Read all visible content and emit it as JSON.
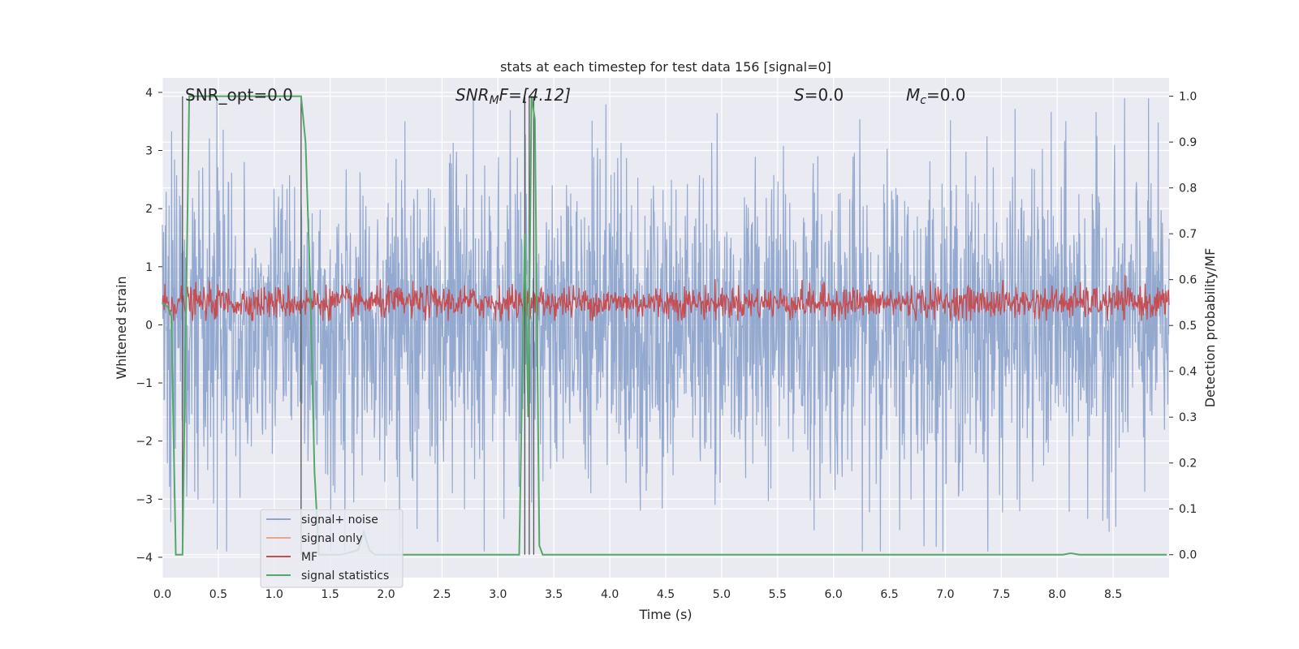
{
  "chart_data": {
    "type": "line",
    "title": "stats at each timestep for test data 156 [signal=0]",
    "xlabel": "Time (s)",
    "ylabel_left": "Whitened strain",
    "ylabel_right": "Detection probability/MF",
    "xlim": [
      0.0,
      9.0
    ],
    "ylim_left": [
      -4.35,
      4.25
    ],
    "ylim_right": [
      -0.05,
      1.04
    ],
    "x_ticks": [
      "0.0",
      "0.5",
      "1.0",
      "1.5",
      "2.0",
      "2.5",
      "3.0",
      "3.5",
      "4.0",
      "4.5",
      "5.0",
      "5.5",
      "6.0",
      "6.5",
      "7.0",
      "7.5",
      "8.0",
      "8.5"
    ],
    "y_ticks_left": [
      "4",
      "3",
      "2",
      "1",
      "0",
      "−1",
      "−2",
      "−3",
      "−4"
    ],
    "y_ticks_right": [
      "1.0",
      "0.9",
      "0.8",
      "0.7",
      "0.6",
      "0.5",
      "0.4",
      "0.3",
      "0.2",
      "0.1",
      "0.0"
    ],
    "grid": true,
    "legend": {
      "placement": "lower-left",
      "entries": [
        "signal+ noise",
        "signal only",
        "MF",
        "signal statistics"
      ]
    },
    "annotations": {
      "snr_opt": "SNR_opt=0.0",
      "snr_mf_prefix": "SNR",
      "snr_mf_sub": "M",
      "snr_mf_suffix": "F=[4.12]",
      "s_prefix": "S",
      "s_suffix": "=0.0",
      "mc_prefix": "M",
      "mc_sub": "c",
      "mc_suffix": "=0.0"
    },
    "series": [
      {
        "name": "signal+ noise",
        "axis": "left",
        "color": "#8fa5cc",
        "kind": "noise",
        "mean": 0.0,
        "std": 1.0,
        "typical_extent": [
          -3.9,
          3.9
        ]
      },
      {
        "name": "signal only",
        "axis": "left",
        "color": "#e8a888",
        "values": []
      },
      {
        "name": "MF",
        "axis": "right",
        "color": "#c44e52",
        "kind": "noise",
        "mean": 0.55,
        "typical_extent": [
          0.51,
          0.61
        ]
      },
      {
        "name": "signal statistics",
        "axis": "right",
        "color": "#55a868",
        "x": [
          0.0,
          0.05,
          0.08,
          0.12,
          0.18,
          0.24,
          1.24,
          1.28,
          1.32,
          1.36,
          1.4,
          1.6,
          1.75,
          1.8,
          1.85,
          1.9,
          3.19,
          3.24,
          3.27,
          3.3,
          3.33,
          3.37,
          3.4,
          8.05,
          8.12,
          8.2,
          8.98
        ],
        "values": [
          0.55,
          0.54,
          0.52,
          0.0,
          0.0,
          1.0,
          1.0,
          0.9,
          0.6,
          0.18,
          0.0,
          0.0,
          0.01,
          0.05,
          0.01,
          0.0,
          0.0,
          0.7,
          0.3,
          1.0,
          0.95,
          0.02,
          0.0,
          0.0,
          0.003,
          0.0,
          0.0
        ]
      }
    ],
    "vertical_markers_x": [
      0.18,
      1.24,
      3.24,
      3.28,
      3.32
    ]
  }
}
